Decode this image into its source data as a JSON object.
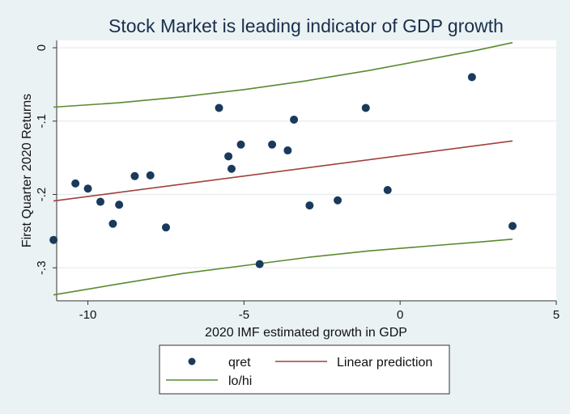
{
  "chart_data": {
    "type": "scatter",
    "title": "Stock Market is leading indicator of GDP growth",
    "xlabel": "2020 IMF estimated growth in GDP",
    "ylabel": "First Quarter 2020 Returns",
    "xlim": [
      -11.0,
      5.0
    ],
    "ylim": [
      -0.345,
      0.01
    ],
    "xticks": [
      -10,
      -5,
      0,
      5
    ],
    "xtick_labels": [
      "-10",
      "-5",
      "0",
      "5"
    ],
    "yticks": [
      0,
      -0.1,
      -0.2,
      -0.3
    ],
    "ytick_labels": [
      "0",
      "-.1",
      "-.2",
      "-.3"
    ],
    "grid": true,
    "legend_position": "bottom",
    "series": [
      {
        "name": "qret",
        "kind": "scatter",
        "color": "#1a3a5c",
        "points": [
          [
            -11.1,
            -0.262
          ],
          [
            -10.4,
            -0.185
          ],
          [
            -10.0,
            -0.192
          ],
          [
            -9.6,
            -0.21
          ],
          [
            -9.2,
            -0.24
          ],
          [
            -9.0,
            -0.214
          ],
          [
            -8.5,
            -0.175
          ],
          [
            -8.0,
            -0.174
          ],
          [
            -7.5,
            -0.245
          ],
          [
            -5.8,
            -0.082
          ],
          [
            -5.5,
            -0.148
          ],
          [
            -5.4,
            -0.165
          ],
          [
            -5.1,
            -0.132
          ],
          [
            -4.5,
            -0.295
          ],
          [
            -4.1,
            -0.132
          ],
          [
            -3.6,
            -0.14
          ],
          [
            -3.4,
            -0.098
          ],
          [
            -2.9,
            -0.215
          ],
          [
            -2.0,
            -0.208
          ],
          [
            -1.1,
            -0.082
          ],
          [
            -0.4,
            -0.194
          ],
          [
            2.3,
            -0.04
          ],
          [
            3.6,
            -0.243
          ]
        ]
      },
      {
        "name": "Linear prediction",
        "kind": "line",
        "color": "#a0403c",
        "x": [
          -11.1,
          3.6
        ],
        "y": [
          -0.209,
          -0.127
        ]
      },
      {
        "name": "lo/hi",
        "kind": "line",
        "color": "#5a8a30",
        "x": [
          -11.1,
          -9,
          -7,
          -5,
          -3,
          -1,
          1,
          2.5,
          3.6
        ],
        "y": [
          -0.081,
          -0.075,
          -0.067,
          -0.057,
          -0.045,
          -0.031,
          -0.015,
          -0.003,
          0.007
        ]
      },
      {
        "name": "lo/hi",
        "kind": "line",
        "color": "#5a8a30",
        "x": [
          -11.1,
          -9,
          -7,
          -5,
          -3,
          -1,
          1,
          2.5,
          3.6
        ],
        "y": [
          -0.337,
          -0.322,
          -0.308,
          -0.297,
          -0.286,
          -0.277,
          -0.27,
          -0.265,
          -0.261
        ]
      }
    ],
    "legend": [
      {
        "label": "qret",
        "kind": "marker",
        "color": "#1a3a5c"
      },
      {
        "label": "Linear prediction",
        "kind": "line",
        "color": "#a0403c"
      },
      {
        "label": "lo/hi",
        "kind": "line",
        "color": "#5a8a30"
      }
    ]
  }
}
